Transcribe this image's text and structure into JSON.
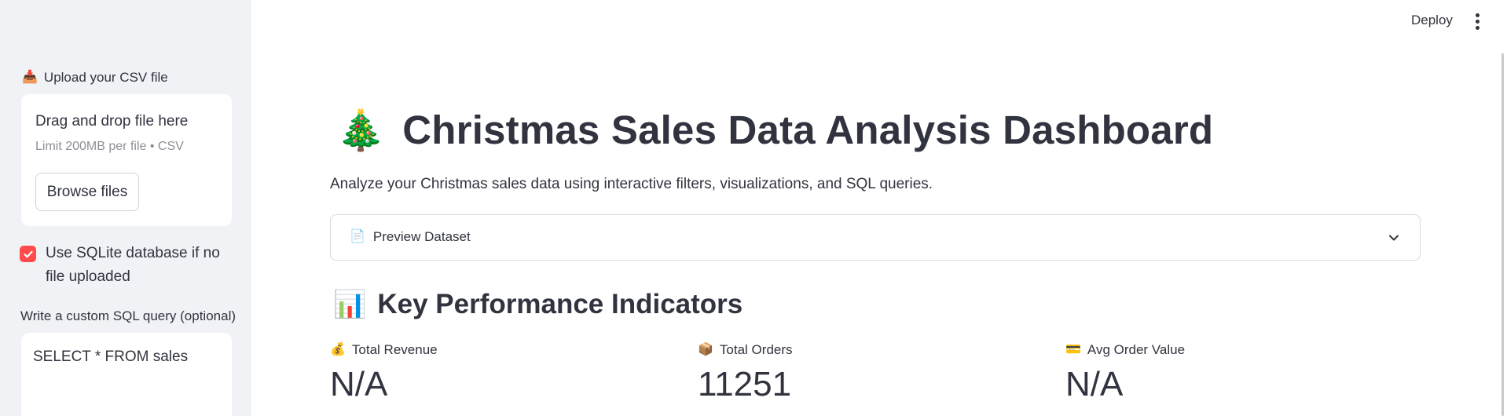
{
  "sidebar": {
    "upload_label": "Upload your CSV file",
    "upload_icon": "inbox-tray-icon",
    "dropzone_title": "Drag and drop file here",
    "dropzone_limit": "Limit 200MB per file • CSV",
    "browse_label": "Browse files",
    "sqlite_checkbox_label": "Use SQLite database if no file uploaded",
    "sqlite_checked": true,
    "sql_label": "Write a custom SQL query (optional)",
    "sql_value": "SELECT * FROM sales"
  },
  "header": {
    "deploy_label": "Deploy",
    "menu_icon": "kebab-menu-icon"
  },
  "main": {
    "title_emoji": "🎄",
    "title": "Christmas Sales Data Analysis Dashboard",
    "subtitle": "Analyze your Christmas sales data using interactive filters, visualizations, and SQL queries.",
    "expander_emoji": "📄",
    "expander_label": "Preview Dataset",
    "kpi_emoji": "📊",
    "kpi_heading": "Key Performance Indicators",
    "metrics": [
      {
        "emoji": "💰",
        "label": "Total Revenue",
        "value": "N/A"
      },
      {
        "emoji": "📦",
        "label": "Total Orders",
        "value": "11251"
      },
      {
        "emoji": "💳",
        "label": "Avg Order Value",
        "value": "N/A"
      }
    ]
  },
  "colors": {
    "accent": "#ff4b4b",
    "sidebar_bg": "#f0f2f6",
    "text": "#31333f"
  }
}
